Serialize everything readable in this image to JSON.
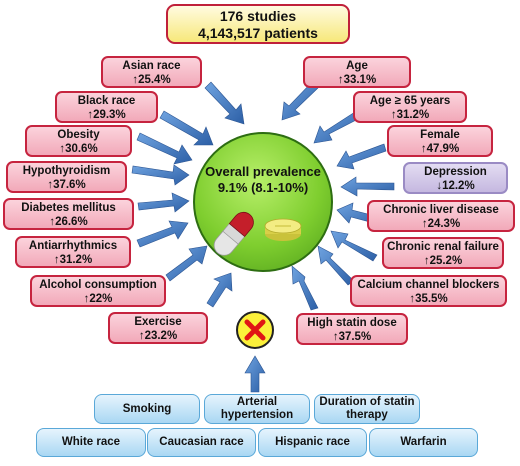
{
  "header": {
    "studies": "176 studies",
    "patients": "4,143,517 patients"
  },
  "center": {
    "title": "Overall prevalence",
    "value": "9.1% (8.1-10%)"
  },
  "left_factors": [
    {
      "name": "Asian race",
      "value": "↑25.4%"
    },
    {
      "name": "Black race",
      "value": "↑29.3%"
    },
    {
      "name": "Obesity",
      "value": "↑30.6%"
    },
    {
      "name": "Hypothyroidism",
      "value": "↑37.6%"
    },
    {
      "name": "Diabetes mellitus",
      "value": "↑26.6%"
    },
    {
      "name": "Antiarrhythmics",
      "value": "↑31.2%"
    },
    {
      "name": "Alcohol consumption",
      "value": "↑22%"
    },
    {
      "name": "Exercise",
      "value": "↑23.2%"
    }
  ],
  "right_factors": [
    {
      "name": "Age",
      "value": "↑33.1%"
    },
    {
      "name": "Age ≥ 65 years",
      "value": "↑31.2%"
    },
    {
      "name": "Female",
      "value": "↑47.9%"
    },
    {
      "name": "Depression",
      "value": "↓12.2%"
    },
    {
      "name": "Chronic liver disease",
      "value": "↑24.3%"
    },
    {
      "name": "Chronic renal failure",
      "value": "↑25.2%"
    },
    {
      "name": "Calcium channel blockers",
      "value": "↑35.5%"
    },
    {
      "name": "High statin dose",
      "value": "↑37.5%"
    }
  ],
  "no_effect": {
    "row1": [
      "Smoking",
      "Arterial hypertension",
      "Duration of statin therapy"
    ],
    "row2": [
      "White race",
      "Caucasian race",
      "Hispanic race",
      "Warfarin"
    ]
  },
  "colors": {
    "risk_fill": "#f2a9b9",
    "risk_border": "#c6243f",
    "protective_fill": "#c5b8e0",
    "center_fill": "#7fce2f",
    "arrow": "#3d73b8",
    "no_effect_fill": "#a9d7f3"
  },
  "icons": {
    "pill": "capsule-and-tablet-icon",
    "no_effect": "red-x-icon"
  }
}
